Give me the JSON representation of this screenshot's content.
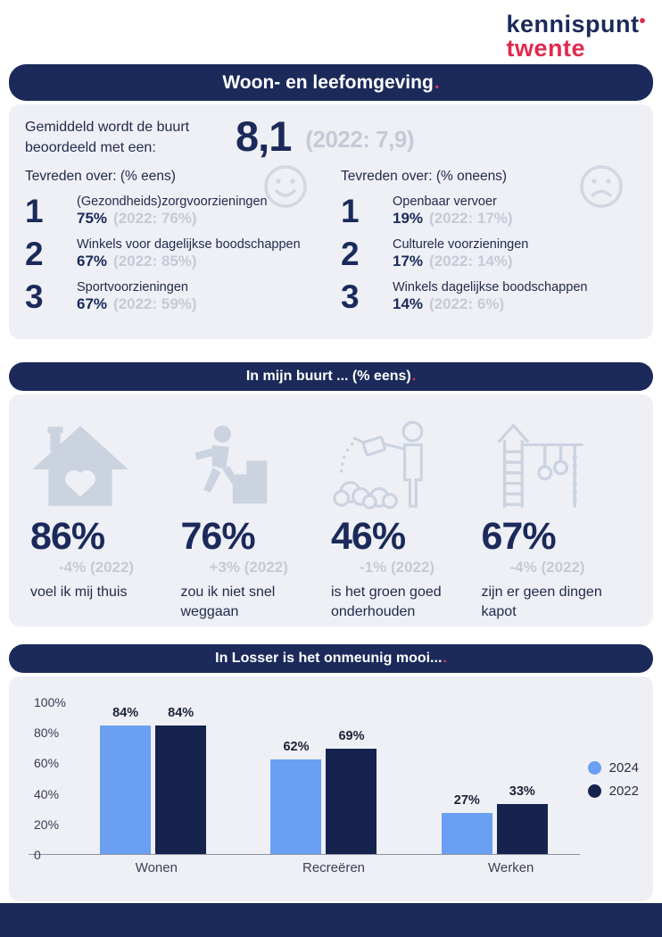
{
  "accent_dot": ".",
  "colors": {
    "navy": "#1b2a5a",
    "red": "#e02a4f",
    "grey_text": "#c5cad6",
    "card_bg": "#eef0f5",
    "icon_grey": "#ccd3e0"
  },
  "logo": {
    "line1": "kennispunt",
    "mark": "•",
    "line2": "twente"
  },
  "section1": {
    "title": "Woon- en leefomgeving",
    "rating_label": "Gemiddeld wordt de buurt beoordeeld met een:",
    "rating_value": "8,1",
    "rating_prev": "(2022: 7,9)",
    "left": {
      "heading": "Tevreden over: (% eens)",
      "face_icon": "happy-face",
      "items": [
        {
          "rank": "1",
          "label": "(Gezondheids)zorgvoorzieningen",
          "value": "75%",
          "prev": "(2022: 76%)"
        },
        {
          "rank": "2",
          "label": "Winkels voor dagelijkse boodschappen",
          "value": "67%",
          "prev": "(2022: 85%)"
        },
        {
          "rank": "3",
          "label": "Sportvoorzieningen",
          "value": "67%",
          "prev": "(2022: 59%)"
        }
      ]
    },
    "right": {
      "heading": "Tevreden over: (% oneens)",
      "face_icon": "sad-face",
      "items": [
        {
          "rank": "1",
          "label": "Openbaar vervoer",
          "value": "19%",
          "prev": "(2022: 17%)"
        },
        {
          "rank": "2",
          "label": "Culturele voorzieningen",
          "value": "17%",
          "prev": "(2022: 14%)"
        },
        {
          "rank": "3",
          "label": "Winkels dagelijkse boodschappen",
          "value": "14%",
          "prev": "(2022: 6%)"
        }
      ]
    }
  },
  "section2": {
    "title": "In mijn buurt ... (% eens)",
    "stats": [
      {
        "icon": "house-heart",
        "value": "86%",
        "delta": "-4% (2022)",
        "caption": "voel ik mij thuis"
      },
      {
        "icon": "person-leaving",
        "value": "76%",
        "delta": "+3% (2022)",
        "caption": "zou ik niet snel weggaan"
      },
      {
        "icon": "watering-plants",
        "value": "46%",
        "delta": "-1% (2022)",
        "caption": "is het groen goed onderhouden"
      },
      {
        "icon": "playground",
        "value": "67%",
        "delta": "-4% (2022)",
        "caption": "zijn er geen dingen kapot"
      }
    ]
  },
  "section3": {
    "title": "In Losser is het onmeunig mooi..."
  },
  "chart_data": {
    "type": "bar",
    "title": "In Losser is het onmeunig mooi....",
    "categories": [
      "Wonen",
      "Recreëren",
      "Werken"
    ],
    "series": [
      {
        "name": "2024",
        "color": "#6b9ff2",
        "values": [
          84,
          62,
          27
        ]
      },
      {
        "name": "2022",
        "color": "#16234e",
        "values": [
          84,
          69,
          33
        ]
      }
    ],
    "xlabel": "",
    "ylabel": "",
    "ylim": [
      0,
      100
    ],
    "yticks": [
      "100%",
      "80%",
      "60%",
      "40%",
      "20%",
      "0"
    ],
    "value_labels": true,
    "grid": false,
    "legend_position": "right"
  }
}
